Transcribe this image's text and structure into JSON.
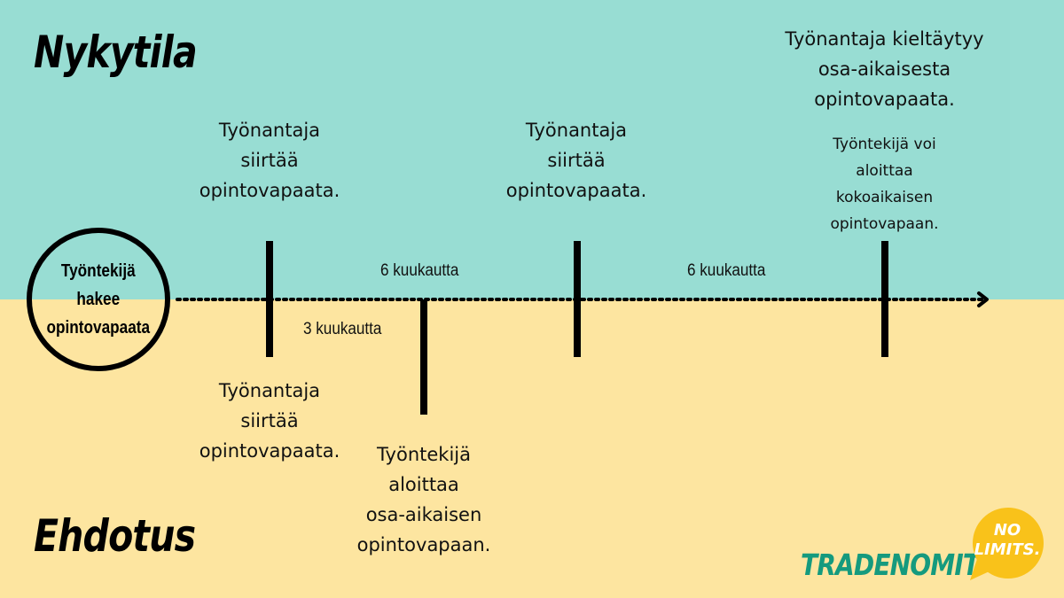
{
  "sections": {
    "top_title": "Nykytila",
    "bottom_title": "Ehdotus"
  },
  "start": {
    "label": "Työntekijä\nhakee\nopintovapaata"
  },
  "top_notes": {
    "first_transfer": "Työnantaja\nsiirtää\nopintovapaata.",
    "second_transfer": "Työnantaja\nsiirtää\nopintovapaata.",
    "refusal": "Työnantaja kieltäytyy\nosa-aikaisesta\nopintovapaata.",
    "full_time": "Työntekijä voi\naloittaa\nkokoaikaisen\nopintovapaan."
  },
  "bottom_notes": {
    "transfer": "Työnantaja\nsiirtää\nopintovapaata.",
    "part_time": "Työntekijä\naloittaa\nosa-aikaisen\nopintovapaan."
  },
  "durations": {
    "first_six": "6 kuukautta",
    "second_six": "6 kuukautta",
    "three": "3 kuukautta"
  },
  "logo": {
    "word": "TRADENOMIT.",
    "bubble": "NO\nLIMITS."
  },
  "colors": {
    "top_band": "#98ddd3",
    "bottom_band": "#fde5a0",
    "brand_green": "#159a7e",
    "brand_yellow": "#f9c21a"
  }
}
